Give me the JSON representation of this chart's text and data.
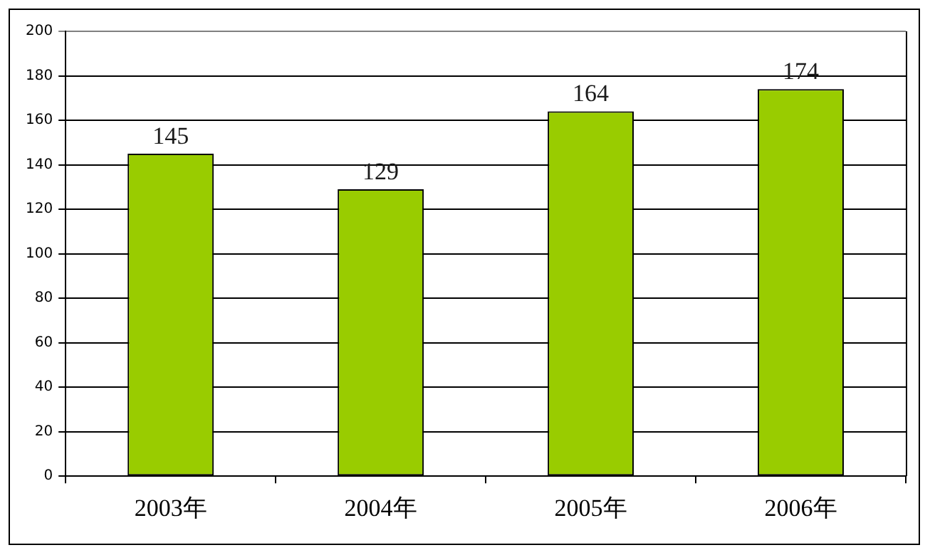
{
  "chart_data": {
    "type": "bar",
    "categories": [
      "2003年",
      "2004年",
      "2005年",
      "2006年"
    ],
    "values": [
      145,
      129,
      164,
      174
    ],
    "color": "#99cc00",
    "ylim": [
      0,
      200
    ],
    "yticks": [
      0,
      20,
      40,
      60,
      80,
      100,
      120,
      140,
      160,
      180,
      200
    ],
    "grid": "y",
    "data_labels": true
  }
}
